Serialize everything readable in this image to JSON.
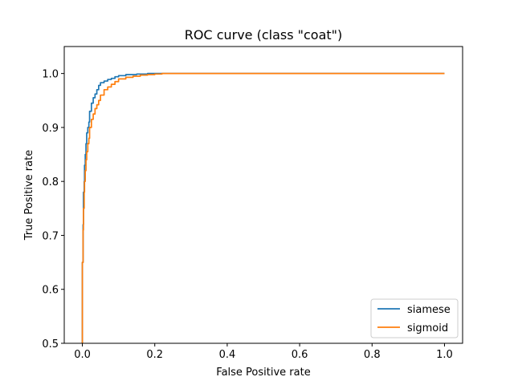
{
  "chart_data": {
    "type": "line",
    "title": "ROC curve (class \"coat\")",
    "xlabel": "False Positive rate",
    "ylabel": "True Positive rate",
    "xlim": [
      -0.05,
      1.05
    ],
    "ylim": [
      0.5,
      1.05
    ],
    "xticks": [
      0.0,
      0.2,
      0.4,
      0.6,
      0.8,
      1.0
    ],
    "xtick_labels": [
      "0.0",
      "0.2",
      "0.4",
      "0.6",
      "0.8",
      "1.0"
    ],
    "yticks": [
      0.5,
      0.6,
      0.7,
      0.8,
      0.9,
      1.0
    ],
    "ytick_labels": [
      "0.5",
      "0.6",
      "0.7",
      "0.8",
      "0.9",
      "1.0"
    ],
    "grid": false,
    "legend_position": "lower-right",
    "series": [
      {
        "name": "siamese",
        "color": "#1f77b4",
        "x": [
          0.0,
          0.002,
          0.003,
          0.005,
          0.006,
          0.008,
          0.01,
          0.012,
          0.015,
          0.018,
          0.02,
          0.025,
          0.03,
          0.035,
          0.04,
          0.045,
          0.05,
          0.06,
          0.07,
          0.08,
          0.09,
          0.1,
          0.12,
          0.15,
          0.18,
          0.2,
          0.24,
          0.3,
          0.5,
          1.0
        ],
        "y": [
          0.5,
          0.65,
          0.72,
          0.78,
          0.8,
          0.83,
          0.85,
          0.87,
          0.89,
          0.9,
          0.91,
          0.93,
          0.945,
          0.955,
          0.962,
          0.97,
          0.978,
          0.983,
          0.986,
          0.989,
          0.991,
          0.994,
          0.996,
          0.998,
          0.999,
          1.0,
          1.0,
          1.0,
          1.0,
          1.0
        ]
      },
      {
        "name": "sigmoid",
        "color": "#ff7f0e",
        "x": [
          0.0,
          0.002,
          0.003,
          0.005,
          0.006,
          0.008,
          0.01,
          0.012,
          0.015,
          0.018,
          0.02,
          0.025,
          0.03,
          0.035,
          0.04,
          0.045,
          0.05,
          0.06,
          0.07,
          0.08,
          0.09,
          0.1,
          0.12,
          0.14,
          0.16,
          0.18,
          0.2,
          0.22,
          0.24,
          0.3,
          0.5,
          1.0
        ],
        "y": [
          0.5,
          0.65,
          0.71,
          0.75,
          0.78,
          0.8,
          0.82,
          0.84,
          0.855,
          0.87,
          0.88,
          0.9,
          0.915,
          0.925,
          0.935,
          0.942,
          0.95,
          0.96,
          0.97,
          0.975,
          0.98,
          0.985,
          0.99,
          0.993,
          0.995,
          0.997,
          0.998,
          0.999,
          1.0,
          1.0,
          1.0,
          1.0
        ]
      }
    ]
  }
}
